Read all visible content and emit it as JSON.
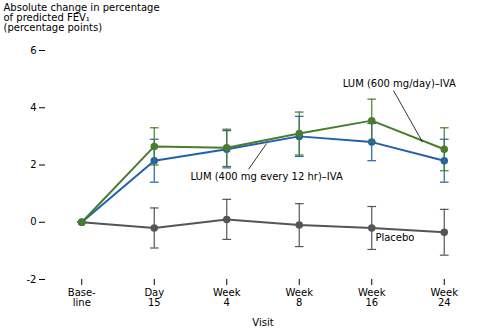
{
  "chart_data": {
    "type": "line",
    "categories": [
      "Base-\nline",
      "Day\n15",
      "Week\n4",
      "Week\n8",
      "Week\n16",
      "Week\n24"
    ],
    "xlabel": "Visit",
    "ylabel": "Absolute change in percentage\nof predicted FEV₁\n(percentage points)",
    "ylim": [
      -2,
      6
    ],
    "yticks": [
      -2,
      0,
      2,
      4,
      6
    ],
    "marker": "circle",
    "series": [
      {
        "name": "LUM (600 mg/day)–IVA",
        "color": "#4a7c2f",
        "values": [
          0.0,
          2.65,
          2.6,
          3.1,
          3.55,
          2.55
        ],
        "error": [
          0.0,
          0.65,
          0.65,
          0.75,
          0.75,
          0.75
        ]
      },
      {
        "name": "LUM (400 mg every 12 hr)–IVA",
        "color": "#2060b0",
        "values": [
          0.0,
          2.15,
          2.55,
          3.0,
          2.8,
          2.15
        ],
        "error": [
          0.0,
          0.75,
          0.65,
          0.7,
          0.65,
          0.75
        ]
      },
      {
        "name": "Placebo",
        "color": "#555555",
        "values": [
          0.0,
          -0.2,
          0.1,
          -0.1,
          -0.2,
          -0.35
        ],
        "error": [
          0.0,
          0.7,
          0.7,
          0.75,
          0.75,
          0.8
        ]
      }
    ]
  }
}
